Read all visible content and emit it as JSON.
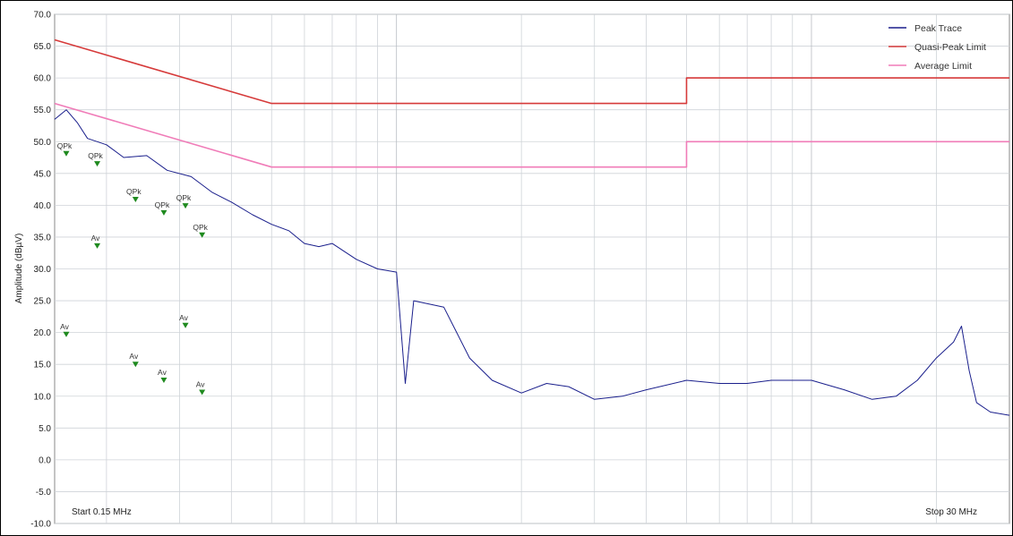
{
  "chart_data": {
    "type": "line",
    "title": "",
    "xlabel": "",
    "ylabel": "Amplitude (dBµV)",
    "x_scale": "log",
    "xlim": [
      0.15,
      30
    ],
    "ylim": [
      -10,
      70
    ],
    "yticks": [
      "70.0",
      "65.0",
      "60.0",
      "55.0",
      "50.0",
      "45.0",
      "40.0",
      "35.0",
      "30.0",
      "25.0",
      "20.0",
      "15.0",
      "10.0",
      "5.0",
      "0.0",
      "-5.0",
      "-10.0"
    ],
    "ytick_values": [
      70,
      65,
      60,
      55,
      50,
      45,
      40,
      35,
      30,
      25,
      20,
      15,
      10,
      5,
      0,
      -5,
      -10
    ],
    "grid": true,
    "legend_position": "top-right",
    "x_start_label": "Start 0.15 MHz",
    "x_stop_label": "Stop 30 MHz",
    "colors": {
      "peak": "#1a1f8c",
      "qp_limit": "#d63a3a",
      "avg_limit": "#f07cb8",
      "marker": "#1f8a1f",
      "grid": "#cfd3d8"
    },
    "series": [
      {
        "name": "Peak Trace",
        "x": [
          0.15,
          0.16,
          0.17,
          0.18,
          0.2,
          0.22,
          0.25,
          0.28,
          0.32,
          0.36,
          0.4,
          0.45,
          0.5,
          0.55,
          0.6,
          0.65,
          0.7,
          0.8,
          0.9,
          1.0,
          1.05,
          1.1,
          1.3,
          1.5,
          1.7,
          2.0,
          2.3,
          2.6,
          3.0,
          3.5,
          4.0,
          5.0,
          6.0,
          7.0,
          8.0,
          10.0,
          12.0,
          14.0,
          16.0,
          18.0,
          20.0,
          22.0,
          23.0,
          24.0,
          25.0,
          27.0,
          30.0
        ],
        "y": [
          53.5,
          55.0,
          53.0,
          50.5,
          49.5,
          47.5,
          47.8,
          45.5,
          44.5,
          42.0,
          40.5,
          38.5,
          37.0,
          36.0,
          34.0,
          33.5,
          34.0,
          31.5,
          30.0,
          29.5,
          12.0,
          25.0,
          24.0,
          16.0,
          12.5,
          10.5,
          12.0,
          11.5,
          9.5,
          10.0,
          11.0,
          12.5,
          12.0,
          12.0,
          12.5,
          12.5,
          11.0,
          9.5,
          10.0,
          12.5,
          16.0,
          18.5,
          21.0,
          14.0,
          9.0,
          7.5,
          7.0
        ]
      },
      {
        "name": "Quasi-Peak Limit",
        "x": [
          0.15,
          0.5,
          5.0,
          5.0,
          30.0
        ],
        "y": [
          66,
          56,
          56,
          60,
          60
        ]
      },
      {
        "name": "Average Limit",
        "x": [
          0.15,
          0.5,
          5.0,
          5.0,
          30.0
        ],
        "y": [
          56,
          46,
          46,
          50,
          50
        ]
      }
    ],
    "markers": [
      {
        "label": "QPk",
        "x": 0.16,
        "y": 48.1
      },
      {
        "label": "QPk",
        "x": 0.19,
        "y": 46.5
      },
      {
        "label": "QPk",
        "x": 0.235,
        "y": 40.9
      },
      {
        "label": "QPk",
        "x": 0.275,
        "y": 38.8
      },
      {
        "label": "QPk",
        "x": 0.31,
        "y": 39.9
      },
      {
        "label": "QPk",
        "x": 0.34,
        "y": 35.3
      },
      {
        "label": "Av",
        "x": 0.16,
        "y": 19.7
      },
      {
        "label": "Av",
        "x": 0.19,
        "y": 33.6
      },
      {
        "label": "Av",
        "x": 0.235,
        "y": 15.0
      },
      {
        "label": "Av",
        "x": 0.275,
        "y": 12.5
      },
      {
        "label": "Av",
        "x": 0.31,
        "y": 21.1
      },
      {
        "label": "Av",
        "x": 0.34,
        "y": 10.6
      }
    ]
  }
}
